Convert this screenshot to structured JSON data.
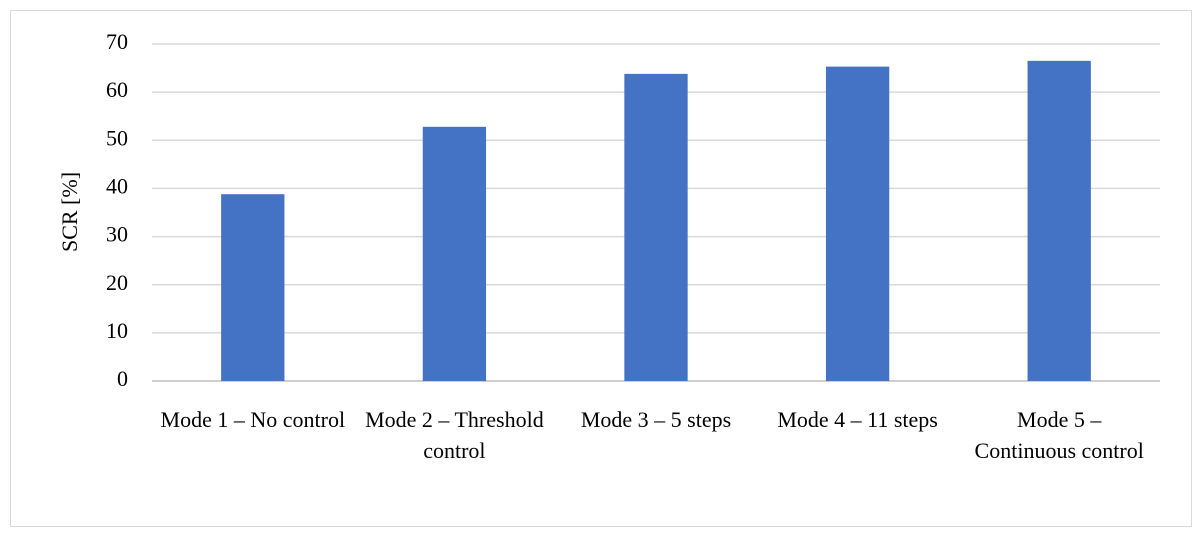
{
  "chart_data": {
    "type": "bar",
    "y_label": "SCR [%]",
    "categories": [
      "Mode 1 – No control",
      "Mode 2 – Threshold control",
      "Mode 3 – 5 steps",
      "Mode 4 – 11 steps",
      "Mode 5 – Continuous control"
    ],
    "values": [
      38.8,
      52.8,
      63.8,
      65.3,
      66.5
    ],
    "color": "#4472c4",
    "ylim": [
      0,
      70
    ],
    "yticks": [
      0,
      10,
      20,
      30,
      40,
      50,
      60,
      70
    ],
    "grid": true
  }
}
